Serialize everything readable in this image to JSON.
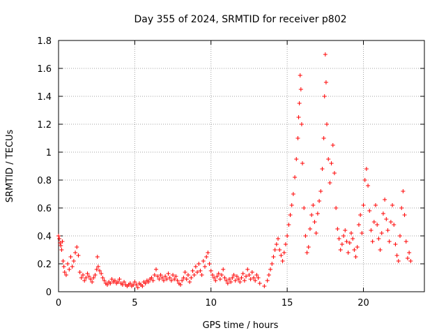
{
  "chart_data": {
    "type": "scatter",
    "title": "Day 355 of 2024, SRMTID for receiver p802",
    "xlabel": "GPS time / hours",
    "ylabel": "SRMTID / TECUs",
    "xlim": [
      0,
      24
    ],
    "ylim": [
      0,
      1.8
    ],
    "xticks": [
      0,
      5,
      10,
      15,
      20
    ],
    "xtick_labels": [
      "0",
      "5",
      "10",
      "15",
      "20"
    ],
    "yticks": [
      0,
      0.2,
      0.4,
      0.6,
      0.8,
      1.0,
      1.2,
      1.4,
      1.6,
      1.8
    ],
    "ytick_labels": [
      "0",
      "0.2",
      "0.4",
      "0.6",
      "0.8",
      "1",
      "1.2",
      "1.4",
      "1.6",
      "1.8"
    ],
    "grid": true,
    "marker": "+",
    "series": [
      {
        "name": "p802",
        "color": "#ff0000",
        "points": [
          [
            0.0,
            0.4
          ],
          [
            0.05,
            0.38
          ],
          [
            0.1,
            0.35
          ],
          [
            0.15,
            0.33
          ],
          [
            0.2,
            0.3
          ],
          [
            0.25,
            0.36
          ],
          [
            0.3,
            0.22
          ],
          [
            0.35,
            0.18
          ],
          [
            0.4,
            0.14
          ],
          [
            0.5,
            0.12
          ],
          [
            0.6,
            0.2
          ],
          [
            0.7,
            0.16
          ],
          [
            0.8,
            0.25
          ],
          [
            0.9,
            0.18
          ],
          [
            1.0,
            0.22
          ],
          [
            1.1,
            0.28
          ],
          [
            1.2,
            0.32
          ],
          [
            1.3,
            0.26
          ],
          [
            1.4,
            0.14
          ],
          [
            1.5,
            0.1
          ],
          [
            1.6,
            0.12
          ],
          [
            1.7,
            0.08
          ],
          [
            1.8,
            0.1
          ],
          [
            1.9,
            0.13
          ],
          [
            2.0,
            0.11
          ],
          [
            2.1,
            0.09
          ],
          [
            2.2,
            0.07
          ],
          [
            2.3,
            0.1
          ],
          [
            2.4,
            0.12
          ],
          [
            2.5,
            0.16
          ],
          [
            2.55,
            0.25
          ],
          [
            2.6,
            0.18
          ],
          [
            2.7,
            0.15
          ],
          [
            2.8,
            0.13
          ],
          [
            2.9,
            0.1
          ],
          [
            3.0,
            0.08
          ],
          [
            3.1,
            0.06
          ],
          [
            3.2,
            0.05
          ],
          [
            3.3,
            0.07
          ],
          [
            3.4,
            0.06
          ],
          [
            3.5,
            0.09
          ],
          [
            3.6,
            0.07
          ],
          [
            3.7,
            0.08
          ],
          [
            3.8,
            0.06
          ],
          [
            3.9,
            0.07
          ],
          [
            4.0,
            0.09
          ],
          [
            4.1,
            0.06
          ],
          [
            4.2,
            0.05
          ],
          [
            4.3,
            0.07
          ],
          [
            4.4,
            0.05
          ],
          [
            4.5,
            0.04
          ],
          [
            4.6,
            0.05
          ],
          [
            4.7,
            0.06
          ],
          [
            4.8,
            0.04
          ],
          [
            4.9,
            0.05
          ],
          [
            5.0,
            0.07
          ],
          [
            5.1,
            0.05
          ],
          [
            5.2,
            0.03
          ],
          [
            5.3,
            0.06
          ],
          [
            5.4,
            0.05
          ],
          [
            5.5,
            0.04
          ],
          [
            5.6,
            0.07
          ],
          [
            5.7,
            0.06
          ],
          [
            5.8,
            0.08
          ],
          [
            5.9,
            0.07
          ],
          [
            6.0,
            0.09
          ],
          [
            6.1,
            0.1
          ],
          [
            6.2,
            0.08
          ],
          [
            6.3,
            0.12
          ],
          [
            6.4,
            0.16
          ],
          [
            6.5,
            0.11
          ],
          [
            6.6,
            0.09
          ],
          [
            6.7,
            0.12
          ],
          [
            6.8,
            0.1
          ],
          [
            6.9,
            0.08
          ],
          [
            7.0,
            0.11
          ],
          [
            7.1,
            0.09
          ],
          [
            7.2,
            0.13
          ],
          [
            7.3,
            0.1
          ],
          [
            7.4,
            0.08
          ],
          [
            7.5,
            0.12
          ],
          [
            7.6,
            0.09
          ],
          [
            7.7,
            0.11
          ],
          [
            7.8,
            0.08
          ],
          [
            7.9,
            0.06
          ],
          [
            8.0,
            0.05
          ],
          [
            8.1,
            0.08
          ],
          [
            8.2,
            0.1
          ],
          [
            8.3,
            0.14
          ],
          [
            8.4,
            0.09
          ],
          [
            8.5,
            0.12
          ],
          [
            8.6,
            0.07
          ],
          [
            8.7,
            0.1
          ],
          [
            8.8,
            0.15
          ],
          [
            8.9,
            0.12
          ],
          [
            9.0,
            0.18
          ],
          [
            9.1,
            0.14
          ],
          [
            9.2,
            0.2
          ],
          [
            9.3,
            0.15
          ],
          [
            9.4,
            0.12
          ],
          [
            9.5,
            0.22
          ],
          [
            9.6,
            0.18
          ],
          [
            9.7,
            0.25
          ],
          [
            9.8,
            0.28
          ],
          [
            9.9,
            0.2
          ],
          [
            10.0,
            0.15
          ],
          [
            10.1,
            0.12
          ],
          [
            10.2,
            0.1
          ],
          [
            10.3,
            0.08
          ],
          [
            10.4,
            0.11
          ],
          [
            10.5,
            0.13
          ],
          [
            10.6,
            0.09
          ],
          [
            10.7,
            0.12
          ],
          [
            10.8,
            0.16
          ],
          [
            10.9,
            0.1
          ],
          [
            11.0,
            0.08
          ],
          [
            11.1,
            0.06
          ],
          [
            11.2,
            0.09
          ],
          [
            11.3,
            0.07
          ],
          [
            11.4,
            0.1
          ],
          [
            11.5,
            0.12
          ],
          [
            11.6,
            0.08
          ],
          [
            11.7,
            0.11
          ],
          [
            11.8,
            0.09
          ],
          [
            11.9,
            0.07
          ],
          [
            12.0,
            0.1
          ],
          [
            12.1,
            0.13
          ],
          [
            12.2,
            0.08
          ],
          [
            12.3,
            0.11
          ],
          [
            12.4,
            0.16
          ],
          [
            12.5,
            0.12
          ],
          [
            12.6,
            0.09
          ],
          [
            12.7,
            0.14
          ],
          [
            12.8,
            0.1
          ],
          [
            12.9,
            0.08
          ],
          [
            13.0,
            0.12
          ],
          [
            13.1,
            0.1
          ],
          [
            13.2,
            0.06
          ],
          [
            13.5,
            0.04
          ],
          [
            13.7,
            0.08
          ],
          [
            13.8,
            0.12
          ],
          [
            13.9,
            0.16
          ],
          [
            14.0,
            0.2
          ],
          [
            14.1,
            0.25
          ],
          [
            14.2,
            0.3
          ],
          [
            14.3,
            0.34
          ],
          [
            14.4,
            0.38
          ],
          [
            14.5,
            0.3
          ],
          [
            14.6,
            0.26
          ],
          [
            14.7,
            0.22
          ],
          [
            14.8,
            0.28
          ],
          [
            14.9,
            0.34
          ],
          [
            15.0,
            0.4
          ],
          [
            15.1,
            0.48
          ],
          [
            15.2,
            0.55
          ],
          [
            15.3,
            0.62
          ],
          [
            15.4,
            0.7
          ],
          [
            15.5,
            0.82
          ],
          [
            15.6,
            0.95
          ],
          [
            15.7,
            1.1
          ],
          [
            15.75,
            1.25
          ],
          [
            15.8,
            1.35
          ],
          [
            15.85,
            1.55
          ],
          [
            15.9,
            1.45
          ],
          [
            15.95,
            1.2
          ],
          [
            16.0,
            0.92
          ],
          [
            16.1,
            0.6
          ],
          [
            16.2,
            0.4
          ],
          [
            16.3,
            0.28
          ],
          [
            16.4,
            0.32
          ],
          [
            16.5,
            0.45
          ],
          [
            16.6,
            0.55
          ],
          [
            16.7,
            0.62
          ],
          [
            16.8,
            0.5
          ],
          [
            16.9,
            0.42
          ],
          [
            17.0,
            0.56
          ],
          [
            17.1,
            0.65
          ],
          [
            17.2,
            0.72
          ],
          [
            17.3,
            0.88
          ],
          [
            17.4,
            1.1
          ],
          [
            17.45,
            1.4
          ],
          [
            17.5,
            1.7
          ],
          [
            17.55,
            1.5
          ],
          [
            17.6,
            1.2
          ],
          [
            17.7,
            0.95
          ],
          [
            17.8,
            0.78
          ],
          [
            17.9,
            0.92
          ],
          [
            18.0,
            1.05
          ],
          [
            18.1,
            0.85
          ],
          [
            18.2,
            0.6
          ],
          [
            18.3,
            0.45
          ],
          [
            18.4,
            0.38
          ],
          [
            18.5,
            0.3
          ],
          [
            18.6,
            0.34
          ],
          [
            18.7,
            0.4
          ],
          [
            18.8,
            0.44
          ],
          [
            18.9,
            0.36
          ],
          [
            19.0,
            0.28
          ],
          [
            19.1,
            0.35
          ],
          [
            19.2,
            0.42
          ],
          [
            19.3,
            0.38
          ],
          [
            19.4,
            0.3
          ],
          [
            19.5,
            0.25
          ],
          [
            19.6,
            0.32
          ],
          [
            19.7,
            0.48
          ],
          [
            19.8,
            0.55
          ],
          [
            19.9,
            0.42
          ],
          [
            20.0,
            0.62
          ],
          [
            20.1,
            0.8
          ],
          [
            20.2,
            0.88
          ],
          [
            20.3,
            0.76
          ],
          [
            20.4,
            0.58
          ],
          [
            20.5,
            0.44
          ],
          [
            20.6,
            0.36
          ],
          [
            20.7,
            0.5
          ],
          [
            20.8,
            0.62
          ],
          [
            20.9,
            0.48
          ],
          [
            21.0,
            0.38
          ],
          [
            21.1,
            0.3
          ],
          [
            21.2,
            0.42
          ],
          [
            21.3,
            0.56
          ],
          [
            21.4,
            0.66
          ],
          [
            21.5,
            0.52
          ],
          [
            21.6,
            0.44
          ],
          [
            21.7,
            0.36
          ],
          [
            21.8,
            0.5
          ],
          [
            21.9,
            0.62
          ],
          [
            22.0,
            0.48
          ],
          [
            22.1,
            0.34
          ],
          [
            22.2,
            0.26
          ],
          [
            22.3,
            0.22
          ],
          [
            22.4,
            0.4
          ],
          [
            22.5,
            0.6
          ],
          [
            22.6,
            0.72
          ],
          [
            22.7,
            0.55
          ],
          [
            22.8,
            0.36
          ],
          [
            22.9,
            0.24
          ],
          [
            23.0,
            0.28
          ],
          [
            23.1,
            0.22
          ]
        ]
      }
    ]
  }
}
